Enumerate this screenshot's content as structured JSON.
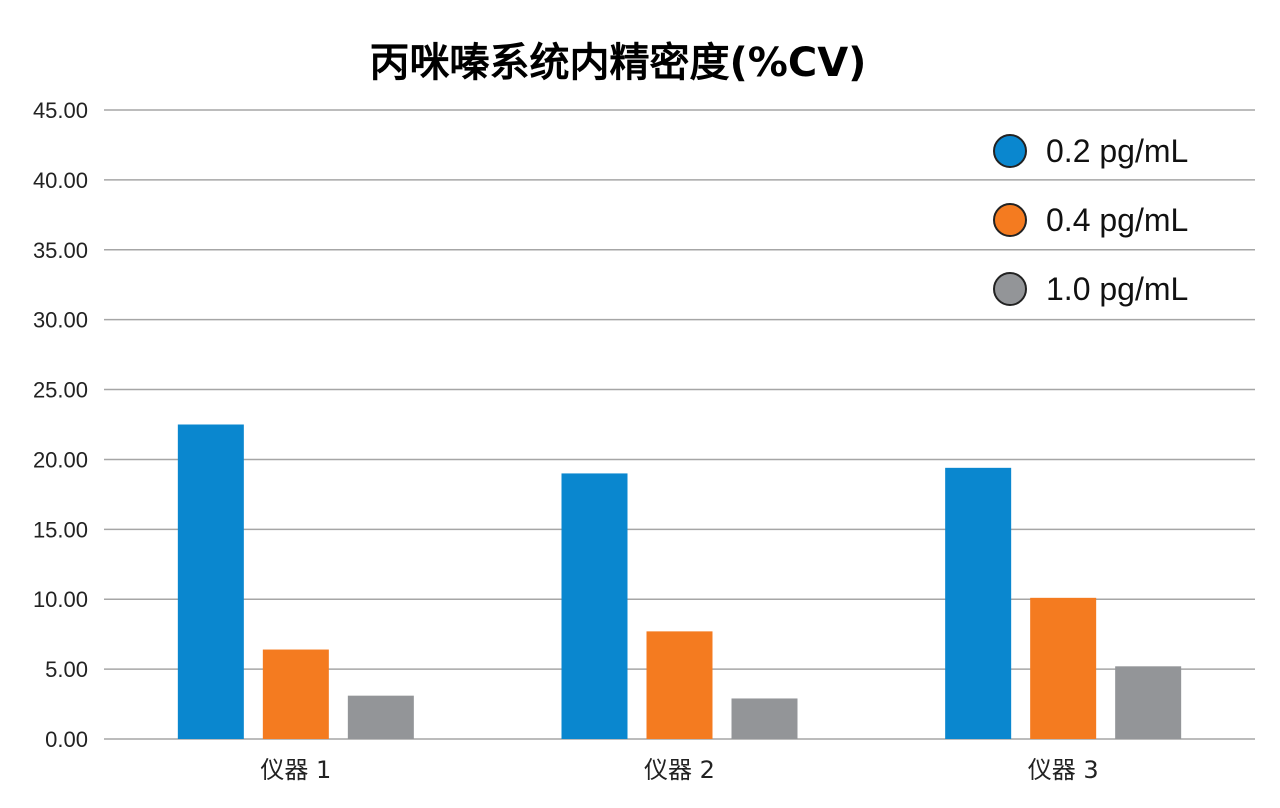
{
  "chart_data": {
    "type": "bar",
    "title": "丙咪嗪系统内精密度(%CV)",
    "xlabel": "",
    "ylabel": "",
    "categories": [
      "仪器 1",
      "仪器 2",
      "仪器 3"
    ],
    "series": [
      {
        "name": "0.2 pg/mL",
        "values": [
          22.5,
          19.0,
          19.4
        ],
        "color": "#0a87cf"
      },
      {
        "name": "0.4 pg/mL",
        "values": [
          6.4,
          7.7,
          10.1
        ],
        "color": "#f47b20"
      },
      {
        "name": "1.0 pg/mL",
        "values": [
          3.1,
          2.9,
          5.2
        ],
        "color": "#939598"
      }
    ],
    "ylim": [
      0,
      45
    ],
    "yticks": [
      "0.00",
      "5.00",
      "10.00",
      "15.00",
      "20.00",
      "25.00",
      "30.00",
      "35.00",
      "40.00",
      "45.00"
    ],
    "ytick_step": 5,
    "grid": true,
    "legend_position": "top-right"
  }
}
